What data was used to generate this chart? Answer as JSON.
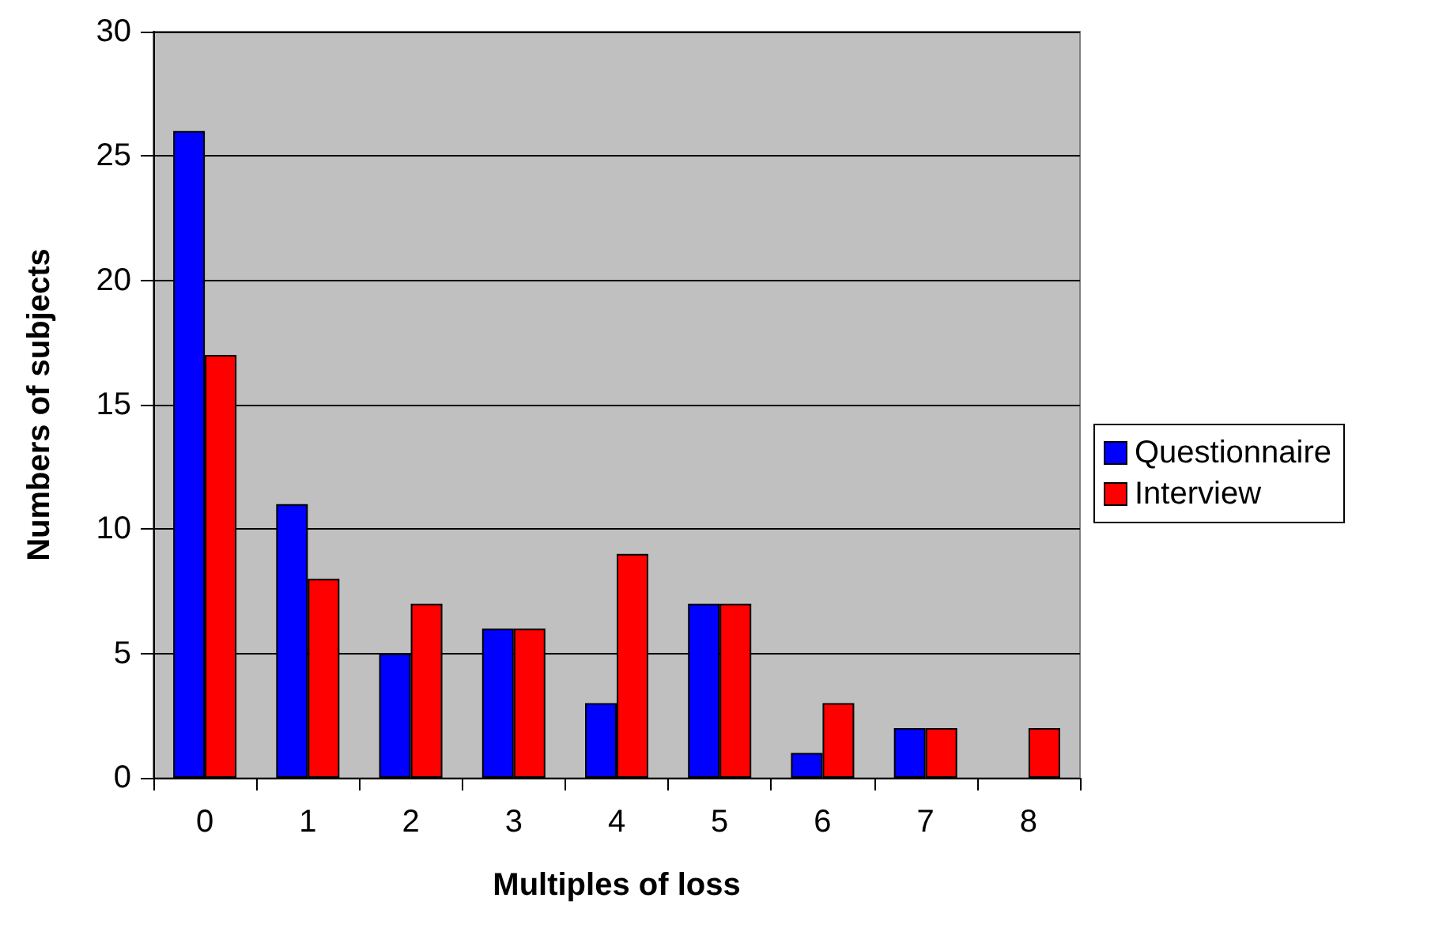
{
  "chart_data": {
    "type": "bar",
    "xlabel": "Multiples of loss",
    "ylabel": "Numbers of subjects",
    "categories": [
      "0",
      "1",
      "2",
      "3",
      "4",
      "5",
      "6",
      "7",
      "8"
    ],
    "series": [
      {
        "name": "Questionnaire",
        "color": "#0000ff",
        "values": [
          26,
          11,
          5,
          6,
          3,
          7,
          1,
          2,
          0
        ]
      },
      {
        "name": "Interview",
        "color": "#ff0000",
        "values": [
          17,
          8,
          7,
          6,
          9,
          7,
          3,
          2,
          2
        ]
      }
    ],
    "ylim": [
      0,
      30
    ],
    "yticks": [
      0,
      5,
      10,
      15,
      20,
      25,
      30
    ],
    "grid": "y",
    "legend": "right"
  }
}
